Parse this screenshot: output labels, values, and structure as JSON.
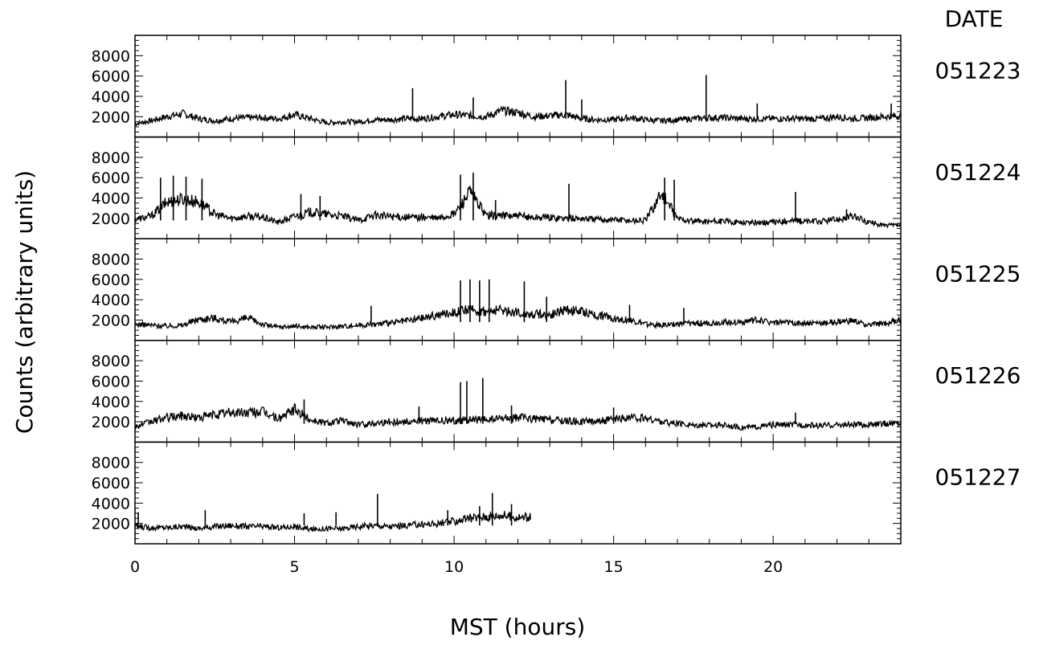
{
  "chart_data": {
    "type": "line",
    "xlabel": "MST (hours)",
    "ylabel": "Counts (arbitrary units)",
    "date_header": "DATE",
    "xlim": [
      0,
      24
    ],
    "ylim": [
      0,
      10000
    ],
    "x_ticks": [
      0,
      5,
      10,
      15,
      20
    ],
    "y_ticks": [
      2000,
      4000,
      6000,
      8000
    ],
    "grid": false,
    "colors": {
      "line": "#000000",
      "axis": "#000000",
      "background": "#ffffff"
    },
    "panels": [
      {
        "date": "051223",
        "x": [
          0,
          0.5,
          1,
          1.5,
          2,
          2.5,
          3,
          3.5,
          4,
          4.5,
          5,
          5.5,
          6,
          6.5,
          7,
          7.5,
          8,
          8.5,
          9,
          9.5,
          10,
          10.5,
          11,
          11.5,
          12,
          12.5,
          13,
          13.5,
          14,
          14.5,
          15,
          15.5,
          16,
          16.5,
          17,
          17.5,
          18,
          18.5,
          19,
          19.5,
          20,
          20.5,
          21,
          21.5,
          22,
          22.5,
          23,
          23.5,
          24
        ],
        "y": [
          1300,
          1600,
          2000,
          2300,
          1800,
          1600,
          1800,
          1900,
          1900,
          1800,
          2200,
          1800,
          1400,
          1500,
          1500,
          1700,
          1700,
          1800,
          1800,
          2000,
          2200,
          2100,
          2000,
          2600,
          2400,
          2000,
          2100,
          2200,
          1800,
          1700,
          1700,
          1900,
          1700,
          1600,
          1700,
          1800,
          1900,
          1900,
          1800,
          1800,
          1800,
          1800,
          1800,
          1800,
          2000,
          1800,
          1900,
          2000,
          2100
        ],
        "spikes": [
          [
            8.7,
            4800
          ],
          [
            10.6,
            3900
          ],
          [
            13.5,
            5600
          ],
          [
            14.0,
            3700
          ],
          [
            17.9,
            6100
          ],
          [
            19.5,
            3300
          ],
          [
            23.7,
            3300
          ]
        ]
      },
      {
        "date": "051224",
        "x": [
          0,
          0.5,
          1,
          1.5,
          2,
          2.5,
          3,
          3.5,
          4,
          4.5,
          5,
          5.5,
          6,
          6.5,
          7,
          7.5,
          8,
          8.5,
          9,
          9.5,
          10,
          10.5,
          11,
          11.5,
          12,
          12.5,
          13,
          13.5,
          14,
          14.5,
          15,
          15.5,
          16,
          16.5,
          17,
          17.5,
          18,
          18.5,
          19,
          19.5,
          20,
          20.5,
          21,
          21.5,
          22,
          22.5,
          23,
          23.5,
          24
        ],
        "y": [
          1900,
          2200,
          3600,
          3900,
          3600,
          2400,
          2000,
          2200,
          2100,
          1600,
          2200,
          2600,
          2400,
          2200,
          1800,
          2300,
          2200,
          2100,
          2100,
          2000,
          2400,
          4600,
          2300,
          2300,
          2200,
          2100,
          2100,
          2000,
          2000,
          1900,
          1900,
          1800,
          1800,
          4500,
          2000,
          1700,
          1700,
          1700,
          1600,
          1600,
          1600,
          1800,
          1700,
          1700,
          1900,
          2200,
          1600,
          1300,
          1300
        ],
        "spikes": [
          [
            0.8,
            6000
          ],
          [
            1.2,
            6200
          ],
          [
            1.6,
            6100
          ],
          [
            2.1,
            5900
          ],
          [
            5.2,
            4400
          ],
          [
            5.8,
            4200
          ],
          [
            10.2,
            6300
          ],
          [
            10.6,
            6500
          ],
          [
            11.3,
            3800
          ],
          [
            13.6,
            5400
          ],
          [
            16.6,
            6000
          ],
          [
            16.9,
            5800
          ],
          [
            20.7,
            4600
          ],
          [
            22.3,
            2900
          ]
        ]
      },
      {
        "date": "051225",
        "x": [
          0,
          0.5,
          1,
          1.5,
          2,
          2.5,
          3,
          3.5,
          4,
          4.5,
          5,
          5.5,
          6,
          6.5,
          7,
          7.5,
          8,
          8.5,
          9,
          9.5,
          10,
          10.5,
          11,
          11.5,
          12,
          12.5,
          13,
          13.5,
          14,
          14.5,
          15,
          15.5,
          16,
          16.5,
          17,
          17.5,
          18,
          18.5,
          19,
          19.5,
          20,
          20.5,
          21,
          21.5,
          22,
          22.5,
          23,
          23.5,
          24
        ],
        "y": [
          1600,
          1500,
          1400,
          1500,
          2100,
          2200,
          1800,
          2200,
          1600,
          1300,
          1400,
          1300,
          1300,
          1400,
          1500,
          1600,
          1700,
          1900,
          2200,
          2500,
          2800,
          3000,
          2800,
          3000,
          2700,
          2600,
          2500,
          3000,
          2800,
          2500,
          2200,
          2000,
          1600,
          1500,
          1600,
          1700,
          1700,
          1800,
          1800,
          2000,
          1800,
          1700,
          1700,
          1700,
          1800,
          1900,
          1500,
          1700,
          2000
        ],
        "spikes": [
          [
            7.4,
            3400
          ],
          [
            10.2,
            5900
          ],
          [
            10.5,
            6000
          ],
          [
            10.8,
            5900
          ],
          [
            11.1,
            6000
          ],
          [
            12.2,
            5800
          ],
          [
            12.9,
            4300
          ],
          [
            15.5,
            3500
          ],
          [
            17.2,
            3200
          ]
        ]
      },
      {
        "date": "051226",
        "x": [
          0,
          0.5,
          1,
          1.5,
          2,
          2.5,
          3,
          3.5,
          4,
          4.5,
          5,
          5.5,
          6,
          6.5,
          7,
          7.5,
          8,
          8.5,
          9,
          9.5,
          10,
          10.5,
          11,
          11.5,
          12,
          12.5,
          13,
          13.5,
          14,
          14.5,
          15,
          15.5,
          16,
          16.5,
          17,
          17.5,
          18,
          18.5,
          19,
          19.5,
          20,
          20.5,
          21,
          21.5,
          22,
          22.5,
          23,
          23.5,
          24
        ],
        "y": [
          1500,
          2000,
          2400,
          2600,
          2400,
          2700,
          2900,
          2900,
          3000,
          2300,
          3200,
          2200,
          1900,
          2100,
          1700,
          1900,
          2000,
          2000,
          2100,
          2100,
          2100,
          2200,
          2200,
          2300,
          2400,
          2300,
          2200,
          2100,
          2000,
          2100,
          2200,
          2400,
          2300,
          2000,
          1800,
          1700,
          1700,
          1700,
          1400,
          1500,
          1700,
          1700,
          1700,
          1600,
          1700,
          1700,
          1700,
          1800,
          1900
        ],
        "spikes": [
          [
            5.3,
            4200
          ],
          [
            8.9,
            3500
          ],
          [
            10.2,
            5900
          ],
          [
            10.4,
            6000
          ],
          [
            10.9,
            6300
          ],
          [
            11.8,
            3600
          ],
          [
            15.0,
            3400
          ],
          [
            20.7,
            2900
          ]
        ]
      },
      {
        "date": "051227",
        "x": [
          0,
          0.5,
          1,
          1.5,
          2,
          2.5,
          3,
          3.5,
          4,
          4.5,
          5,
          5.5,
          6,
          6.5,
          7,
          7.5,
          8,
          8.5,
          9,
          9.5,
          10,
          10.5,
          11,
          11.5,
          12,
          12.4
        ],
        "y": [
          1700,
          1600,
          1600,
          1700,
          1500,
          1700,
          1800,
          1700,
          1700,
          1600,
          1700,
          1400,
          1500,
          1500,
          1700,
          1800,
          1700,
          1800,
          1900,
          2000,
          2200,
          2500,
          2700,
          2800,
          2600,
          2600
        ],
        "spikes": [
          [
            0.1,
            3100
          ],
          [
            2.2,
            3300
          ],
          [
            5.3,
            3000
          ],
          [
            6.3,
            3100
          ],
          [
            7.6,
            4900
          ],
          [
            9.8,
            3300
          ],
          [
            10.8,
            3700
          ],
          [
            11.2,
            5000
          ],
          [
            11.8,
            3900
          ]
        ]
      }
    ]
  }
}
